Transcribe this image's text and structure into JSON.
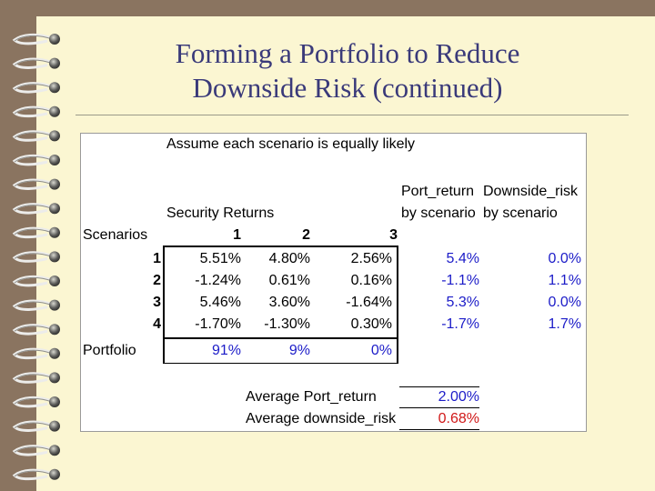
{
  "slide": {
    "title_line1": "Forming a Portfolio to Reduce",
    "title_line2": "Downside Risk (continued)"
  },
  "sheet": {
    "assume": "Assume each scenario is equally likely",
    "header": {
      "port_return_l1": "Port_return",
      "port_return_l2": "by scenario",
      "downside_l1": "Downside_risk",
      "downside_l2": "by scenario",
      "security_returns": "Security Returns",
      "scenarios": "Scenarios",
      "col1": "1",
      "col2": "2",
      "col3": "3"
    },
    "rows": [
      {
        "label": "1",
        "s1": "5.51%",
        "s2": "4.80%",
        "s3": "2.56%",
        "port": "5.4%",
        "down": "0.0%"
      },
      {
        "label": "2",
        "s1": "-1.24%",
        "s2": "0.61%",
        "s3": "0.16%",
        "port": "-1.1%",
        "down": "1.1%"
      },
      {
        "label": "3",
        "s1": "5.46%",
        "s2": "3.60%",
        "s3": "-1.64%",
        "port": "5.3%",
        "down": "0.0%"
      },
      {
        "label": "4",
        "s1": "-1.70%",
        "s2": "-1.30%",
        "s3": "0.30%",
        "port": "-1.7%",
        "down": "1.7%"
      }
    ],
    "portfolio": {
      "label": "Portfolio",
      "w1": "91%",
      "w2": "9%",
      "w3": "0%"
    },
    "avg_return_label": "Average Port_return",
    "avg_return_value": "2.00%",
    "avg_downside_label": "Average downside_risk",
    "avg_downside_value": "0.68%"
  }
}
